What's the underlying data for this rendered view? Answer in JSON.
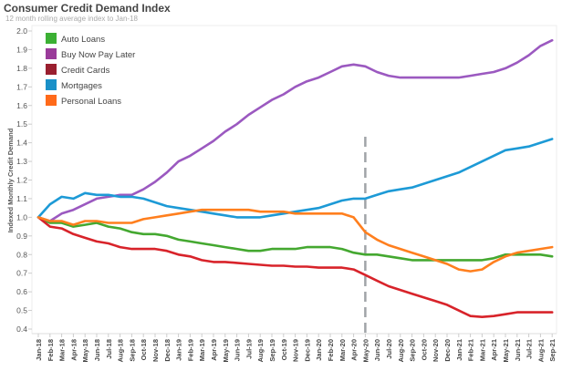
{
  "chart_data": {
    "type": "line",
    "title": "Consumer Credit Demand Index",
    "subtitle": "12 month rolling average index to Jan-18",
    "xlabel": "",
    "ylabel": "Indexed Monthly Credit Demand",
    "ylim": [
      0.4,
      2.0
    ],
    "yticks": [
      "2.0",
      "1.9",
      "1.8",
      "1.7",
      "1.6",
      "1.5",
      "1.4",
      "1.3",
      "1.2",
      "1.1",
      "1.0",
      "0.9",
      "0.8",
      "0.7",
      "0.6",
      "0.5",
      "0.4"
    ],
    "grid": false,
    "legend": "top-left",
    "reference_line": {
      "x": "May-20",
      "style": "dashed",
      "color": "#a0a4a8"
    },
    "categories": [
      "Jan-18",
      "Feb-18",
      "Mar-18",
      "Apr-18",
      "May-18",
      "Jun-18",
      "Jul-18",
      "Aug-18",
      "Sep-18",
      "Oct-18",
      "Nov-18",
      "Dec-18",
      "Jan-19",
      "Feb-19",
      "Mar-19",
      "Apr-19",
      "May-19",
      "Jun-19",
      "Jul-19",
      "Aug-19",
      "Sep-19",
      "Oct-19",
      "Nov-19",
      "Dec-19",
      "Jan-20",
      "Feb-20",
      "Mar-20",
      "Apr-20",
      "May-20",
      "Jun-20",
      "Jul-20",
      "Aug-20",
      "Sep-20",
      "Oct-20",
      "Nov-20",
      "Dec-20",
      "Jan-21",
      "Feb-21",
      "Mar-21",
      "Apr-21",
      "May-21",
      "Jun-21",
      "Jul-21",
      "Aug-21",
      "Sep-21"
    ],
    "series": [
      {
        "name": "Auto Loans",
        "color": "#44a830",
        "legend_color": "#3cb034",
        "values": [
          1.0,
          0.97,
          0.97,
          0.95,
          0.96,
          0.97,
          0.95,
          0.94,
          0.92,
          0.91,
          0.91,
          0.9,
          0.88,
          0.87,
          0.86,
          0.85,
          0.84,
          0.83,
          0.82,
          0.82,
          0.83,
          0.83,
          0.83,
          0.84,
          0.84,
          0.84,
          0.83,
          0.81,
          0.8,
          0.8,
          0.79,
          0.78,
          0.77,
          0.77,
          0.77,
          0.77,
          0.77,
          0.77,
          0.77,
          0.78,
          0.8,
          0.8,
          0.8,
          0.8,
          0.79
        ]
      },
      {
        "name": "Buy Now Pay Later",
        "color": "#9b59c0",
        "legend_color": "#9a3b9a",
        "values": [
          1.0,
          0.98,
          1.02,
          1.04,
          1.07,
          1.1,
          1.11,
          1.12,
          1.12,
          1.15,
          1.19,
          1.24,
          1.3,
          1.33,
          1.37,
          1.41,
          1.46,
          1.5,
          1.55,
          1.59,
          1.63,
          1.66,
          1.7,
          1.73,
          1.75,
          1.78,
          1.81,
          1.82,
          1.81,
          1.78,
          1.76,
          1.75,
          1.75,
          1.75,
          1.75,
          1.75,
          1.75,
          1.76,
          1.77,
          1.78,
          1.8,
          1.83,
          1.87,
          1.92,
          1.95
        ]
      },
      {
        "name": "Credit Cards",
        "color": "#d8232a",
        "legend_color": "#9a1f2f",
        "values": [
          1.0,
          0.95,
          0.94,
          0.91,
          0.89,
          0.87,
          0.86,
          0.84,
          0.83,
          0.83,
          0.83,
          0.82,
          0.8,
          0.79,
          0.77,
          0.76,
          0.76,
          0.755,
          0.75,
          0.745,
          0.74,
          0.74,
          0.735,
          0.735,
          0.73,
          0.73,
          0.73,
          0.72,
          0.69,
          0.66,
          0.63,
          0.61,
          0.59,
          0.57,
          0.55,
          0.53,
          0.5,
          0.47,
          0.465,
          0.47,
          0.48,
          0.49,
          0.49,
          0.49,
          0.49
        ]
      },
      {
        "name": "Mortgages",
        "color": "#1d9ad6",
        "legend_color": "#1a90c8",
        "values": [
          1.0,
          1.07,
          1.11,
          1.1,
          1.13,
          1.12,
          1.12,
          1.11,
          1.11,
          1.1,
          1.08,
          1.06,
          1.05,
          1.04,
          1.03,
          1.02,
          1.01,
          1.0,
          1.0,
          1.0,
          1.01,
          1.02,
          1.03,
          1.04,
          1.05,
          1.07,
          1.09,
          1.1,
          1.1,
          1.12,
          1.14,
          1.15,
          1.16,
          1.18,
          1.2,
          1.22,
          1.24,
          1.27,
          1.3,
          1.33,
          1.36,
          1.37,
          1.38,
          1.4,
          1.42
        ]
      },
      {
        "name": "Personal Loans",
        "color": "#ff7f1e",
        "legend_color": "#ff6a1a",
        "values": [
          1.0,
          0.98,
          0.98,
          0.96,
          0.98,
          0.98,
          0.97,
          0.97,
          0.97,
          0.99,
          1.0,
          1.01,
          1.02,
          1.03,
          1.04,
          1.04,
          1.04,
          1.04,
          1.04,
          1.03,
          1.03,
          1.03,
          1.02,
          1.02,
          1.02,
          1.02,
          1.02,
          1.0,
          0.92,
          0.88,
          0.85,
          0.83,
          0.81,
          0.79,
          0.77,
          0.75,
          0.72,
          0.71,
          0.72,
          0.76,
          0.79,
          0.81,
          0.82,
          0.83,
          0.84
        ]
      }
    ]
  }
}
